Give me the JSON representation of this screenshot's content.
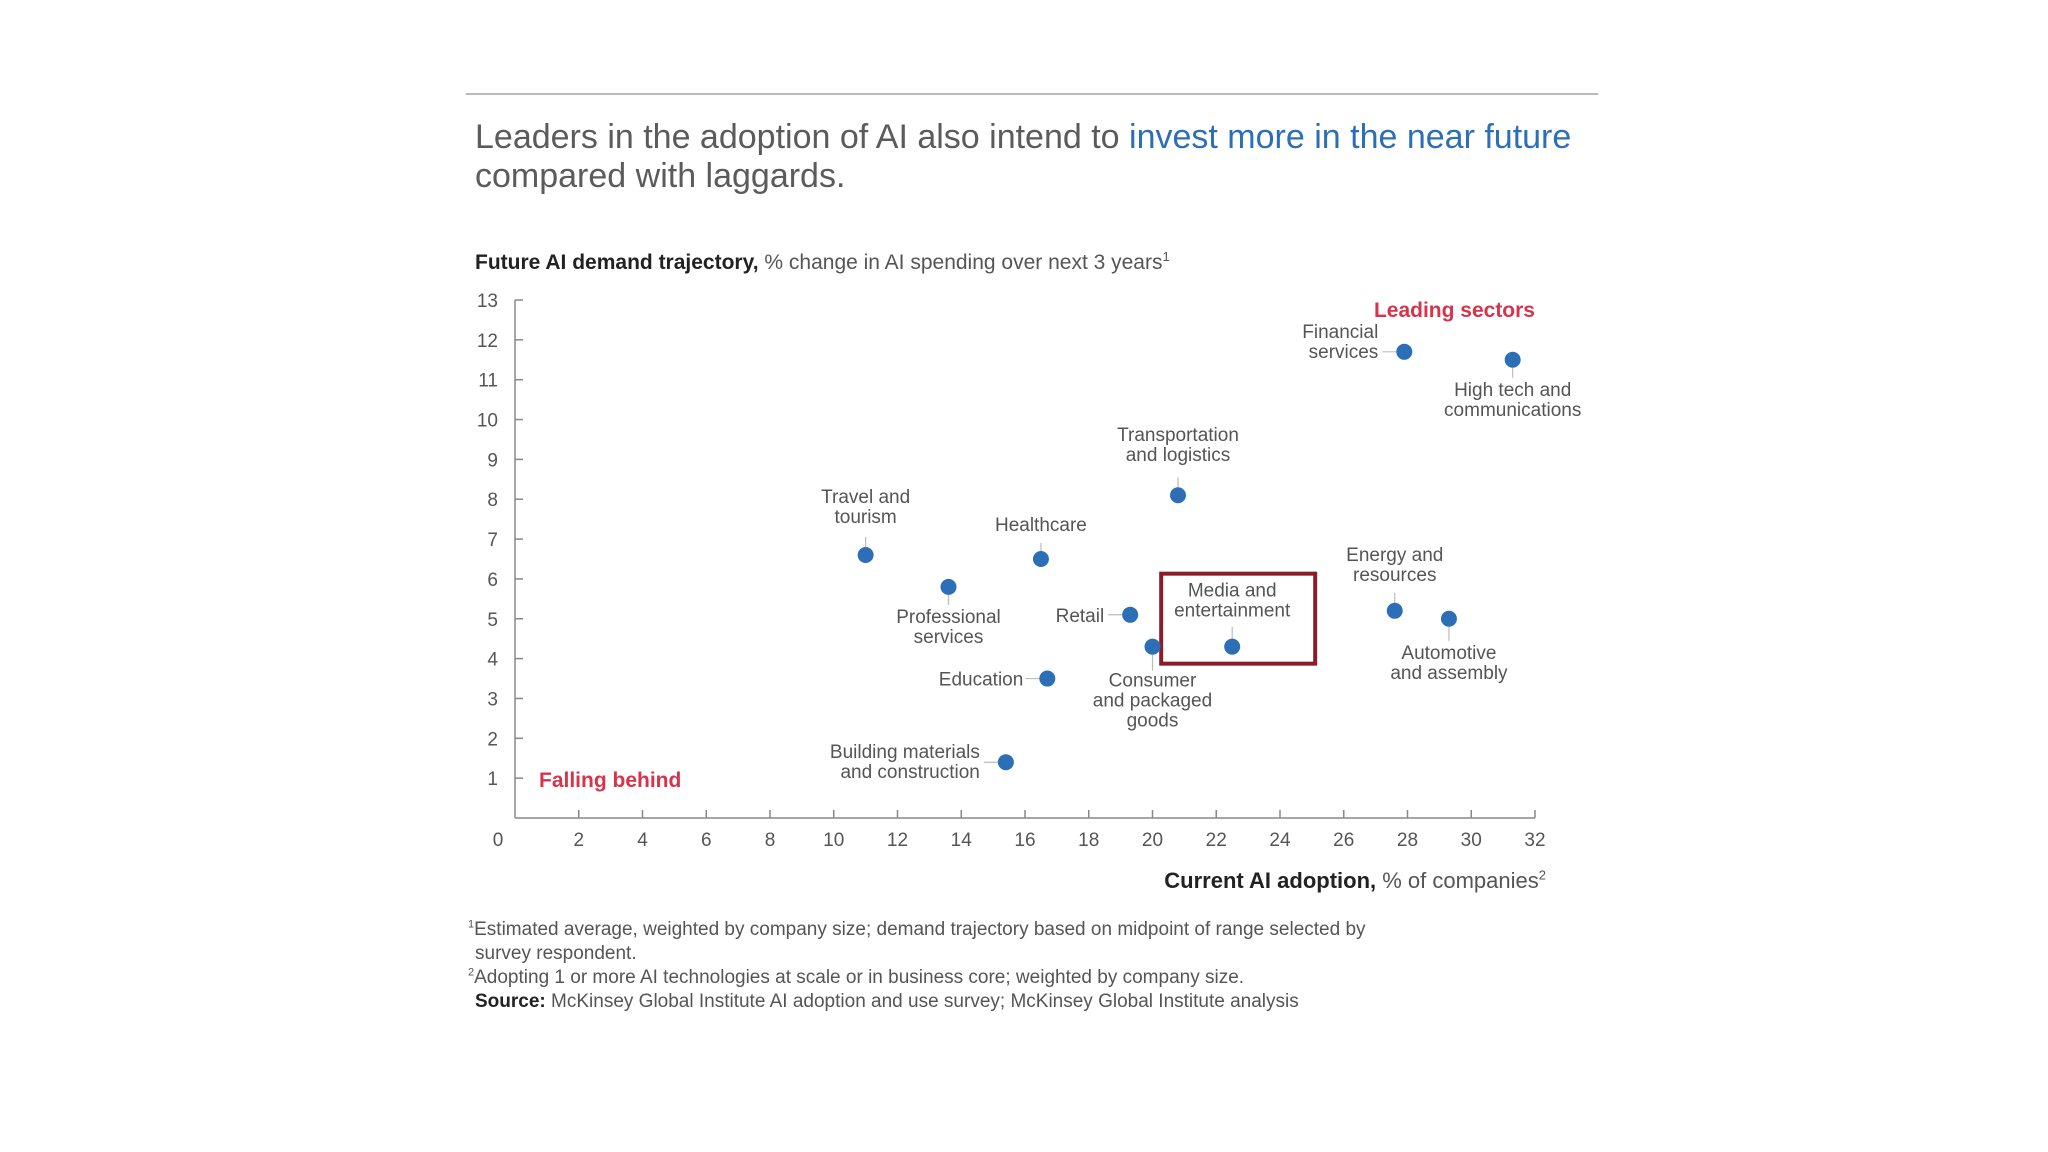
{
  "headline": {
    "part1": "Leaders in the adoption of AI also intend to ",
    "highlight": "invest more in the near future",
    "part2": " compared with laggards."
  },
  "colors": {
    "dot": "#2c6fb7",
    "accent": "#d8334a",
    "highlight_box": "#8b1c2b",
    "axis": "#888888"
  },
  "chart_data": {
    "type": "scatter",
    "y_title_bold": "Future AI demand trajectory,",
    "y_title_rest": " % change in AI spending over next 3 years",
    "y_title_sup": "1",
    "x_title_bold": "Current AI adoption,",
    "x_title_rest": " % of companies",
    "x_title_sup": "2",
    "xlim": [
      0,
      32
    ],
    "ylim": [
      0,
      13
    ],
    "x_ticks": [
      "0",
      "2",
      "4",
      "6",
      "8",
      "10",
      "12",
      "14",
      "16",
      "18",
      "20",
      "22",
      "24",
      "26",
      "28",
      "30",
      "32"
    ],
    "y_ticks": [
      "1",
      "2",
      "3",
      "4",
      "5",
      "6",
      "7",
      "8",
      "9",
      "10",
      "11",
      "12",
      "13"
    ],
    "points": [
      {
        "label": "Financial\nservices",
        "x": 27.9,
        "y": 11.7
      },
      {
        "label": "High tech and\ncommunications",
        "x": 31.3,
        "y": 11.5
      },
      {
        "label": "Transportation\nand logistics",
        "x": 20.8,
        "y": 8.1
      },
      {
        "label": "Travel and\ntourism",
        "x": 11.0,
        "y": 6.6
      },
      {
        "label": "Healthcare",
        "x": 16.5,
        "y": 6.5
      },
      {
        "label": "Professional\nservices",
        "x": 13.6,
        "y": 5.8
      },
      {
        "label": "Retail",
        "x": 19.3,
        "y": 5.1
      },
      {
        "label": "Media and\nentertainment",
        "x": 22.5,
        "y": 4.3
      },
      {
        "label": "Energy and\nresources",
        "x": 27.6,
        "y": 5.2
      },
      {
        "label": "Automotive\nand assembly",
        "x": 29.3,
        "y": 5.0
      },
      {
        "label": "Consumer\nand packaged\ngoods",
        "x": 20.0,
        "y": 4.3
      },
      {
        "label": "Education",
        "x": 16.7,
        "y": 3.5
      },
      {
        "label": "Building materials\nand construction",
        "x": 15.4,
        "y": 1.4
      }
    ],
    "annotations": {
      "top_right": "Leading sectors",
      "bottom_left": "Falling behind"
    },
    "highlighted": "Media and\nentertainment"
  },
  "footnotes": {
    "n1_sup": "1",
    "n1_line1": "Estimated average, weighted by company size; demand trajectory based on midpoint of range selected by",
    "n1_line2": "survey respondent.",
    "n2_sup": "2",
    "n2": "Adopting 1 or more AI technologies at scale or in business core; weighted by company size.",
    "source_label": "Source:",
    "source": " McKinsey Global Institute AI adoption and use survey; McKinsey Global Institute analysis"
  }
}
